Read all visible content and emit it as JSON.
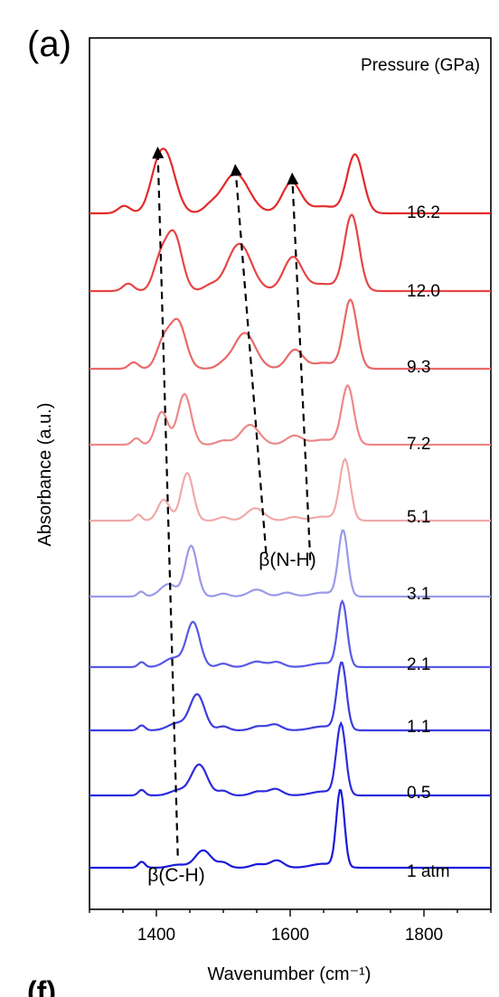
{
  "panel_label": "(a)",
  "next_panel_label": "(f)",
  "chart_data": {
    "type": "line",
    "title": "",
    "xlabel": "Wavenumber (cm⁻¹)",
    "ylabel": "Absorbance (a.u.)",
    "legend_title": "Pressure (GPa)",
    "xlim": [
      1300,
      1900
    ],
    "xticks": [
      1400,
      1600,
      1800
    ],
    "y_ticks_shown": false,
    "grid": false,
    "series": [
      {
        "name": "1 atm",
        "color": "#1a1adc",
        "peaks": [
          [
            1378,
            0.12,
            5
          ],
          [
            1432,
            0.06,
            12
          ],
          [
            1470,
            0.35,
            12
          ],
          [
            1500,
            0.1,
            8
          ],
          [
            1552,
            0.07,
            10
          ],
          [
            1580,
            0.15,
            10
          ],
          [
            1675,
            1.55,
            6
          ],
          [
            1650,
            0.08,
            18
          ]
        ]
      },
      {
        "name": "0.5",
        "color": "#2b2bdf",
        "peaks": [
          [
            1378,
            0.11,
            5
          ],
          [
            1432,
            0.1,
            12
          ],
          [
            1464,
            0.62,
            12
          ],
          [
            1500,
            0.09,
            8
          ],
          [
            1552,
            0.08,
            10
          ],
          [
            1578,
            0.13,
            10
          ],
          [
            1676,
            1.42,
            7
          ],
          [
            1650,
            0.08,
            18
          ]
        ]
      },
      {
        "name": "1.1",
        "color": "#3c3ce2",
        "peaks": [
          [
            1378,
            0.1,
            5
          ],
          [
            1430,
            0.14,
            13
          ],
          [
            1461,
            0.72,
            11
          ],
          [
            1500,
            0.08,
            8
          ],
          [
            1552,
            0.08,
            10
          ],
          [
            1577,
            0.12,
            10
          ],
          [
            1677,
            1.35,
            7
          ],
          [
            1650,
            0.08,
            18
          ]
        ]
      },
      {
        "name": "2.1",
        "color": "#5858e6",
        "peaks": [
          [
            1378,
            0.1,
            5
          ],
          [
            1425,
            0.18,
            13
          ],
          [
            1455,
            0.9,
            10
          ],
          [
            1500,
            0.07,
            8
          ],
          [
            1550,
            0.11,
            12
          ],
          [
            1580,
            0.1,
            10
          ],
          [
            1678,
            1.3,
            7
          ],
          [
            1650,
            0.08,
            18
          ]
        ]
      },
      {
        "name": "3.1",
        "color": "#9a9ae8",
        "peaks": [
          [
            1377,
            0.1,
            5
          ],
          [
            1418,
            0.25,
            12
          ],
          [
            1452,
            1.02,
            9
          ],
          [
            1500,
            0.06,
            8
          ],
          [
            1550,
            0.14,
            12
          ],
          [
            1595,
            0.08,
            10
          ],
          [
            1679,
            1.32,
            7
          ],
          [
            1650,
            0.08,
            18
          ]
        ]
      },
      {
        "name": "5.1",
        "color": "#f0a9a9",
        "peaks": [
          [
            1373,
            0.12,
            5
          ],
          [
            1411,
            0.42,
            9
          ],
          [
            1446,
            0.96,
            9
          ],
          [
            1500,
            0.07,
            8
          ],
          [
            1548,
            0.25,
            13
          ],
          [
            1605,
            0.07,
            10
          ],
          [
            1682,
            1.22,
            8
          ],
          [
            1650,
            0.08,
            18
          ]
        ]
      },
      {
        "name": "7.2",
        "color": "#ec8888",
        "peaks": [
          [
            1370,
            0.13,
            6
          ],
          [
            1408,
            0.66,
            9
          ],
          [
            1442,
            1.02,
            10
          ],
          [
            1500,
            0.08,
            10
          ],
          [
            1540,
            0.4,
            14
          ],
          [
            1606,
            0.18,
            12
          ],
          [
            1686,
            1.18,
            9
          ],
          [
            1650,
            0.1,
            18
          ]
        ]
      },
      {
        "name": "9.3",
        "color": "#e86868",
        "peaks": [
          [
            1366,
            0.13,
            7
          ],
          [
            1410,
            0.5,
            10
          ],
          [
            1432,
            0.95,
            12
          ],
          [
            1500,
            0.08,
            10
          ],
          [
            1532,
            0.72,
            16
          ],
          [
            1607,
            0.38,
            12
          ],
          [
            1690,
            1.38,
            10
          ],
          [
            1650,
            0.12,
            18
          ]
        ]
      },
      {
        "name": "12.0",
        "color": "#e64545",
        "peaks": [
          [
            1358,
            0.15,
            8
          ],
          [
            1405,
            0.55,
            10
          ],
          [
            1426,
            1.15,
            12
          ],
          [
            1480,
            0.1,
            10
          ],
          [
            1524,
            0.95,
            18
          ],
          [
            1604,
            0.68,
            14
          ],
          [
            1692,
            1.52,
            11
          ],
          [
            1650,
            0.14,
            20
          ]
        ]
      },
      {
        "name": "16.2",
        "color": "#e22a2a",
        "peaks": [
          [
            1352,
            0.15,
            9
          ],
          [
            1400,
            0.55,
            12
          ],
          [
            1416,
            1.0,
            14
          ],
          [
            1480,
            0.1,
            10
          ],
          [
            1518,
            0.8,
            20
          ],
          [
            1602,
            0.62,
            14
          ],
          [
            1697,
            1.18,
            12
          ],
          [
            1650,
            0.14,
            20
          ]
        ]
      }
    ],
    "annotations": [
      {
        "text": "β(C-H)",
        "arrow_from": [
          1432,
          "1 atm"
        ],
        "arrow_to": [
          1402,
          "16.2"
        ]
      },
      {
        "text": "β(N-H)",
        "arrow_from": [
          1564,
          "3.1"
        ],
        "arrow_to": [
          1518,
          "16.2"
        ]
      },
      {
        "arrow_from": [
          1630,
          "3.1"
        ],
        "arrow_to": [
          1603,
          "16.2"
        ]
      }
    ],
    "legend_placement": "right, beside each curve"
  }
}
